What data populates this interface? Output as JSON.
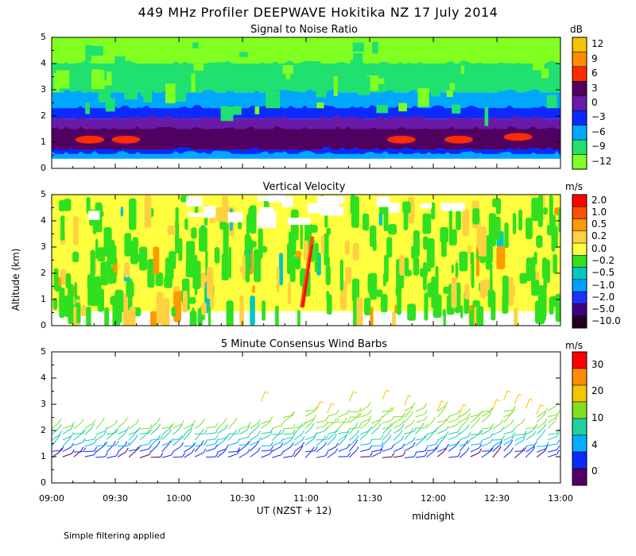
{
  "title": "449 MHz Profiler DEEPWAVE Hokitika NZ 17 July 2014",
  "ylabel": "Altitude (km)",
  "xlabel": "UT  (NZST + 12)",
  "x_annotation": "midnight",
  "note": "Simple filtering applied",
  "x_ticks": [
    "09:00",
    "09:30",
    "10:00",
    "10:30",
    "11:00",
    "11:30",
    "12:00",
    "12:30",
    "13:00"
  ],
  "y_ticks": [
    "0",
    "1",
    "2",
    "3",
    "4",
    "5"
  ],
  "chart_data": [
    {
      "type": "heatmap",
      "title": "Signal to Noise Ratio",
      "unit": "dB",
      "xlim": [
        "09:00",
        "13:00"
      ],
      "ylim": [
        0,
        5
      ],
      "colorbar": {
        "labels": [
          "12",
          "9",
          "6",
          "3",
          "0",
          "−3",
          "−6",
          "−9",
          "−12"
        ],
        "colors": [
          "#f4c400",
          "#ff8c00",
          "#ff2a00",
          "#500060",
          "#6a1aa8",
          "#0a2aff",
          "#00a8ff",
          "#20e070",
          "#80ff20"
        ]
      },
      "layers": [
        {
          "altitude_km": [
            0.4,
            0.55
          ],
          "level_db": -6
        },
        {
          "altitude_km": [
            0.55,
            0.7
          ],
          "level_db": -3
        },
        {
          "altitude_km": [
            0.7,
            1.5
          ],
          "level_db": 3
        },
        {
          "altitude_km": [
            1.5,
            1.9
          ],
          "level_db": 0
        },
        {
          "altitude_km": [
            1.9,
            2.3
          ],
          "level_db": -3
        },
        {
          "altitude_km": [
            2.3,
            2.9
          ],
          "level_db": -6
        },
        {
          "altitude_km": [
            2.9,
            4.0
          ],
          "level_db": -9
        },
        {
          "altitude_km": [
            4.0,
            5.0
          ],
          "level_db": -12
        }
      ],
      "peaks": [
        {
          "time": "09:18",
          "altitude_km": 1.1,
          "level_db": 6
        },
        {
          "time": "09:35",
          "altitude_km": 1.1,
          "level_db": 6
        },
        {
          "time": "11:45",
          "altitude_km": 1.1,
          "level_db": 6
        },
        {
          "time": "12:12",
          "altitude_km": 1.1,
          "level_db": 6
        },
        {
          "time": "12:40",
          "altitude_km": 1.2,
          "level_db": 6
        }
      ]
    },
    {
      "type": "heatmap",
      "title": "Vertical Velocity",
      "unit": "m/s",
      "xlim": [
        "09:00",
        "13:00"
      ],
      "ylim": [
        0,
        5
      ],
      "colorbar": {
        "labels": [
          "2.0",
          "1.0",
          "0.5",
          "0.2",
          "0.0",
          "−0.2",
          "−0.5",
          "−1.0",
          "−2.0",
          "−5.0",
          "−10.0"
        ],
        "colors": [
          "#ff0000",
          "#ff5000",
          "#ff9a00",
          "#ffd040",
          "#ffff40",
          "#30e020",
          "#00c8c0",
          "#00a0ff",
          "#2030ff",
          "#400080",
          "#200020"
        ]
      },
      "features": [
        {
          "time": "11:00",
          "altitude_km": [
            0.7,
            3.4
          ],
          "value_ms": 2.0
        }
      ]
    },
    {
      "type": "scatter",
      "title": "5 Minute Consensus Wind Barbs",
      "unit": "m/s",
      "xlim": [
        "09:00",
        "13:00"
      ],
      "ylim": [
        0,
        5
      ],
      "colorbar": {
        "labels": [
          "30",
          "20",
          "10",
          "4",
          "0"
        ],
        "colors": [
          "#ff0000",
          "#ff8c00",
          "#f4c400",
          "#80e020",
          "#20d0a0",
          "#00b0ff",
          "#0a2aff",
          "#500060"
        ]
      }
    }
  ]
}
